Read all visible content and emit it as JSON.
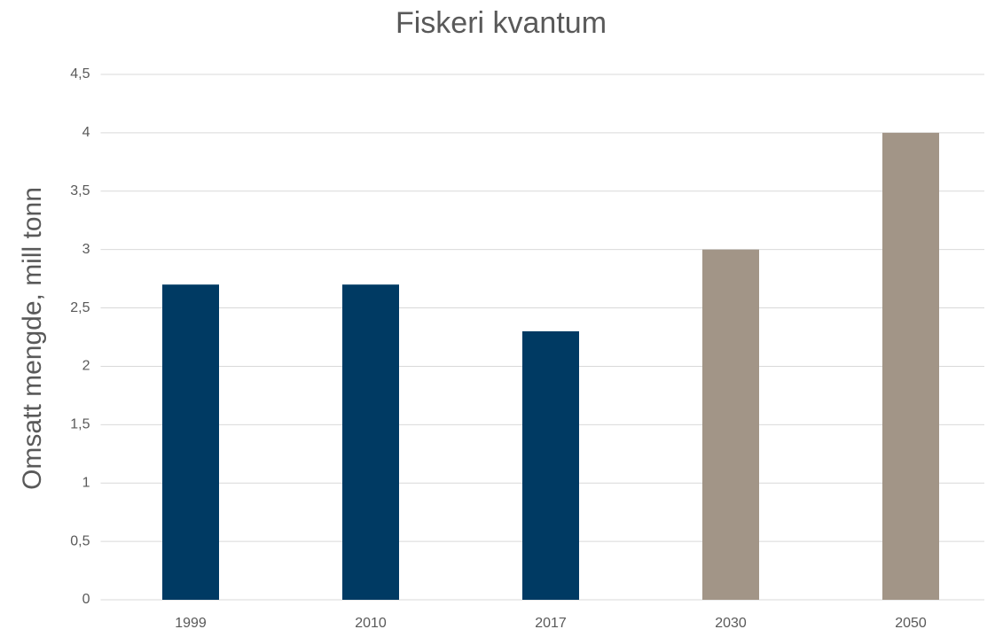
{
  "chart_data": {
    "type": "bar",
    "title": "Fiskeri kvantum",
    "y_label": "Omsatt mengde, mill tonn",
    "categories": [
      "1999",
      "2010",
      "2017",
      "2030",
      "2050"
    ],
    "values": [
      2.7,
      2.7,
      2.3,
      3,
      4
    ],
    "colors": [
      "#003a63",
      "#003a63",
      "#003a63",
      "#a29587",
      "#a29587"
    ],
    "ylim": [
      0,
      4.5
    ],
    "yticks": [
      0,
      {
        "value": 0.5,
        "label": "0,5"
      },
      1,
      {
        "value": 1.5,
        "label": "1,5"
      },
      2,
      {
        "value": 2.5,
        "label": "2,5"
      },
      3,
      {
        "value": 3.5,
        "label": "3,5"
      },
      4,
      {
        "value": 4.5,
        "label": "4,5"
      }
    ],
    "grid": true
  }
}
